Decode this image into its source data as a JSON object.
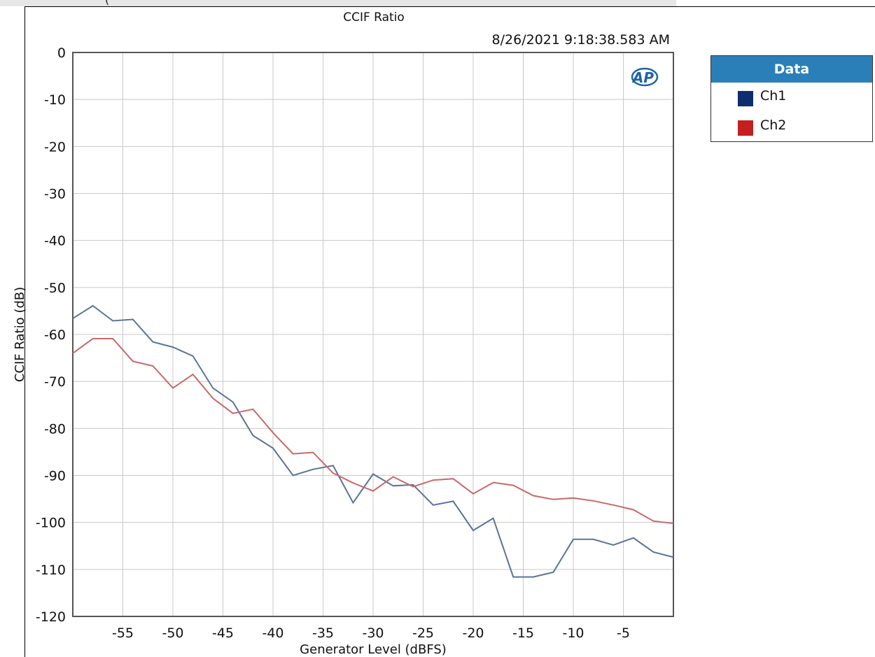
{
  "top_strip_text": "(",
  "chart_data": {
    "type": "line",
    "title": "CCIF Ratio",
    "timestamp": "8/26/2021 9:18:38.583 AM",
    "xlabel": "Generator Level (dBFS)",
    "ylabel": "CCIF Ratio (dB)",
    "xlim": [
      -60,
      0
    ],
    "ylim": [
      -120,
      0
    ],
    "x_ticks": [
      -55,
      -50,
      -45,
      -40,
      -35,
      -30,
      -25,
      -20,
      -15,
      -10,
      -5
    ],
    "y_ticks": [
      0,
      -10,
      -20,
      -30,
      -40,
      -50,
      -60,
      -70,
      -80,
      -90,
      -100,
      -110,
      -120
    ],
    "grid": true,
    "legend_placement": "right",
    "legend_title": "Data",
    "x": [
      -60,
      -58,
      -56,
      -54,
      -52,
      -50,
      -48,
      -46,
      -44,
      -42,
      -40,
      -38,
      -36,
      -34,
      -32,
      -30,
      -28,
      -26,
      -24,
      -22,
      -20,
      -18,
      -16,
      -14,
      -12,
      -10,
      -8,
      -6,
      -4,
      -2,
      0
    ],
    "series": [
      {
        "name": "Ch1",
        "color": "#5a7499",
        "swatch_color": "#0d2e6e",
        "values": [
          -56.6,
          -53.9,
          -57.1,
          -56.8,
          -61.6,
          -62.7,
          -64.6,
          -71.4,
          -74.4,
          -81.5,
          -84.2,
          -90.0,
          -88.7,
          -87.9,
          -95.8,
          -89.7,
          -92.2,
          -92.0,
          -96.3,
          -95.5,
          -101.7,
          -99.1,
          -111.6,
          -111.6,
          -110.6,
          -103.6,
          -103.6,
          -104.8,
          -103.3,
          -106.3,
          -107.4
        ]
      },
      {
        "name": "Ch2",
        "color": "#c96868",
        "swatch_color": "#c4201e",
        "values": [
          -64.0,
          -60.9,
          -60.9,
          -65.7,
          -66.7,
          -71.4,
          -68.5,
          -73.6,
          -76.8,
          -75.9,
          -80.9,
          -85.4,
          -85.1,
          -89.5,
          -91.6,
          -93.3,
          -90.3,
          -92.4,
          -91.0,
          -90.7,
          -93.9,
          -91.5,
          -92.1,
          -94.3,
          -95.1,
          -94.8,
          -95.4,
          -96.3,
          -97.3,
          -99.7,
          -100.2
        ]
      }
    ]
  }
}
